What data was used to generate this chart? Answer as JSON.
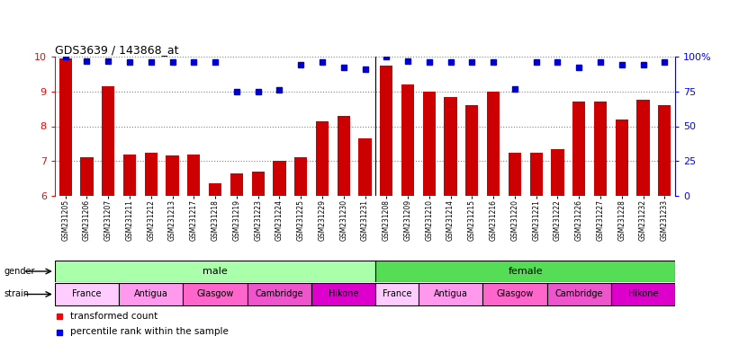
{
  "title": "GDS3639 / 143868_at",
  "samples": [
    "GSM231205",
    "GSM231206",
    "GSM231207",
    "GSM231211",
    "GSM231212",
    "GSM231213",
    "GSM231217",
    "GSM231218",
    "GSM231219",
    "GSM231223",
    "GSM231224",
    "GSM231225",
    "GSM231229",
    "GSM231230",
    "GSM231231",
    "GSM231208",
    "GSM231209",
    "GSM231210",
    "GSM231214",
    "GSM231215",
    "GSM231216",
    "GSM231220",
    "GSM231221",
    "GSM231222",
    "GSM231226",
    "GSM231227",
    "GSM231228",
    "GSM231232",
    "GSM231233"
  ],
  "bar_values": [
    9.95,
    7.1,
    9.15,
    7.2,
    7.25,
    7.15,
    7.2,
    6.35,
    6.65,
    6.7,
    7.0,
    7.1,
    8.15,
    8.3,
    7.65,
    9.75,
    9.2,
    9.0,
    8.85,
    8.6,
    9.0,
    7.25,
    7.25,
    7.35,
    8.7,
    8.7,
    8.2,
    8.75,
    8.6
  ],
  "percentile_raw": [
    100,
    97,
    97,
    96,
    96,
    96,
    96,
    96,
    75,
    75,
    76,
    94,
    96,
    92,
    91,
    100,
    97,
    96,
    96,
    96,
    96,
    77,
    96,
    96,
    92,
    96,
    94,
    94,
    96
  ],
  "ylim": [
    6,
    10
  ],
  "yticks": [
    6,
    7,
    8,
    9,
    10
  ],
  "right_yticks": [
    0,
    25,
    50,
    75,
    100
  ],
  "gender_groups": [
    {
      "label": "male",
      "start": 0,
      "end": 15,
      "color": "#AAFFAA"
    },
    {
      "label": "female",
      "start": 15,
      "end": 29,
      "color": "#55DD55"
    }
  ],
  "strain_groups": [
    {
      "label": "France",
      "start": 0,
      "end": 3,
      "color": "#FFCCFF"
    },
    {
      "label": "Antigua",
      "start": 3,
      "end": 6,
      "color": "#FF99EE"
    },
    {
      "label": "Glasgow",
      "start": 6,
      "end": 9,
      "color": "#FF66CC"
    },
    {
      "label": "Cambridge",
      "start": 9,
      "end": 12,
      "color": "#EE55CC"
    },
    {
      "label": "Hikone",
      "start": 12,
      "end": 15,
      "color": "#DD00CC"
    },
    {
      "label": "France",
      "start": 15,
      "end": 17,
      "color": "#FFCCFF"
    },
    {
      "label": "Antigua",
      "start": 17,
      "end": 20,
      "color": "#FF99EE"
    },
    {
      "label": "Glasgow",
      "start": 20,
      "end": 23,
      "color": "#FF66CC"
    },
    {
      "label": "Cambridge",
      "start": 23,
      "end": 26,
      "color": "#EE55CC"
    },
    {
      "label": "Hikone",
      "start": 26,
      "end": 29,
      "color": "#DD00CC"
    }
  ],
  "bar_color": "#CC0000",
  "dot_color": "#0000CC",
  "bar_bottom": 6,
  "n_samples": 29,
  "male_count": 15,
  "female_count": 14
}
